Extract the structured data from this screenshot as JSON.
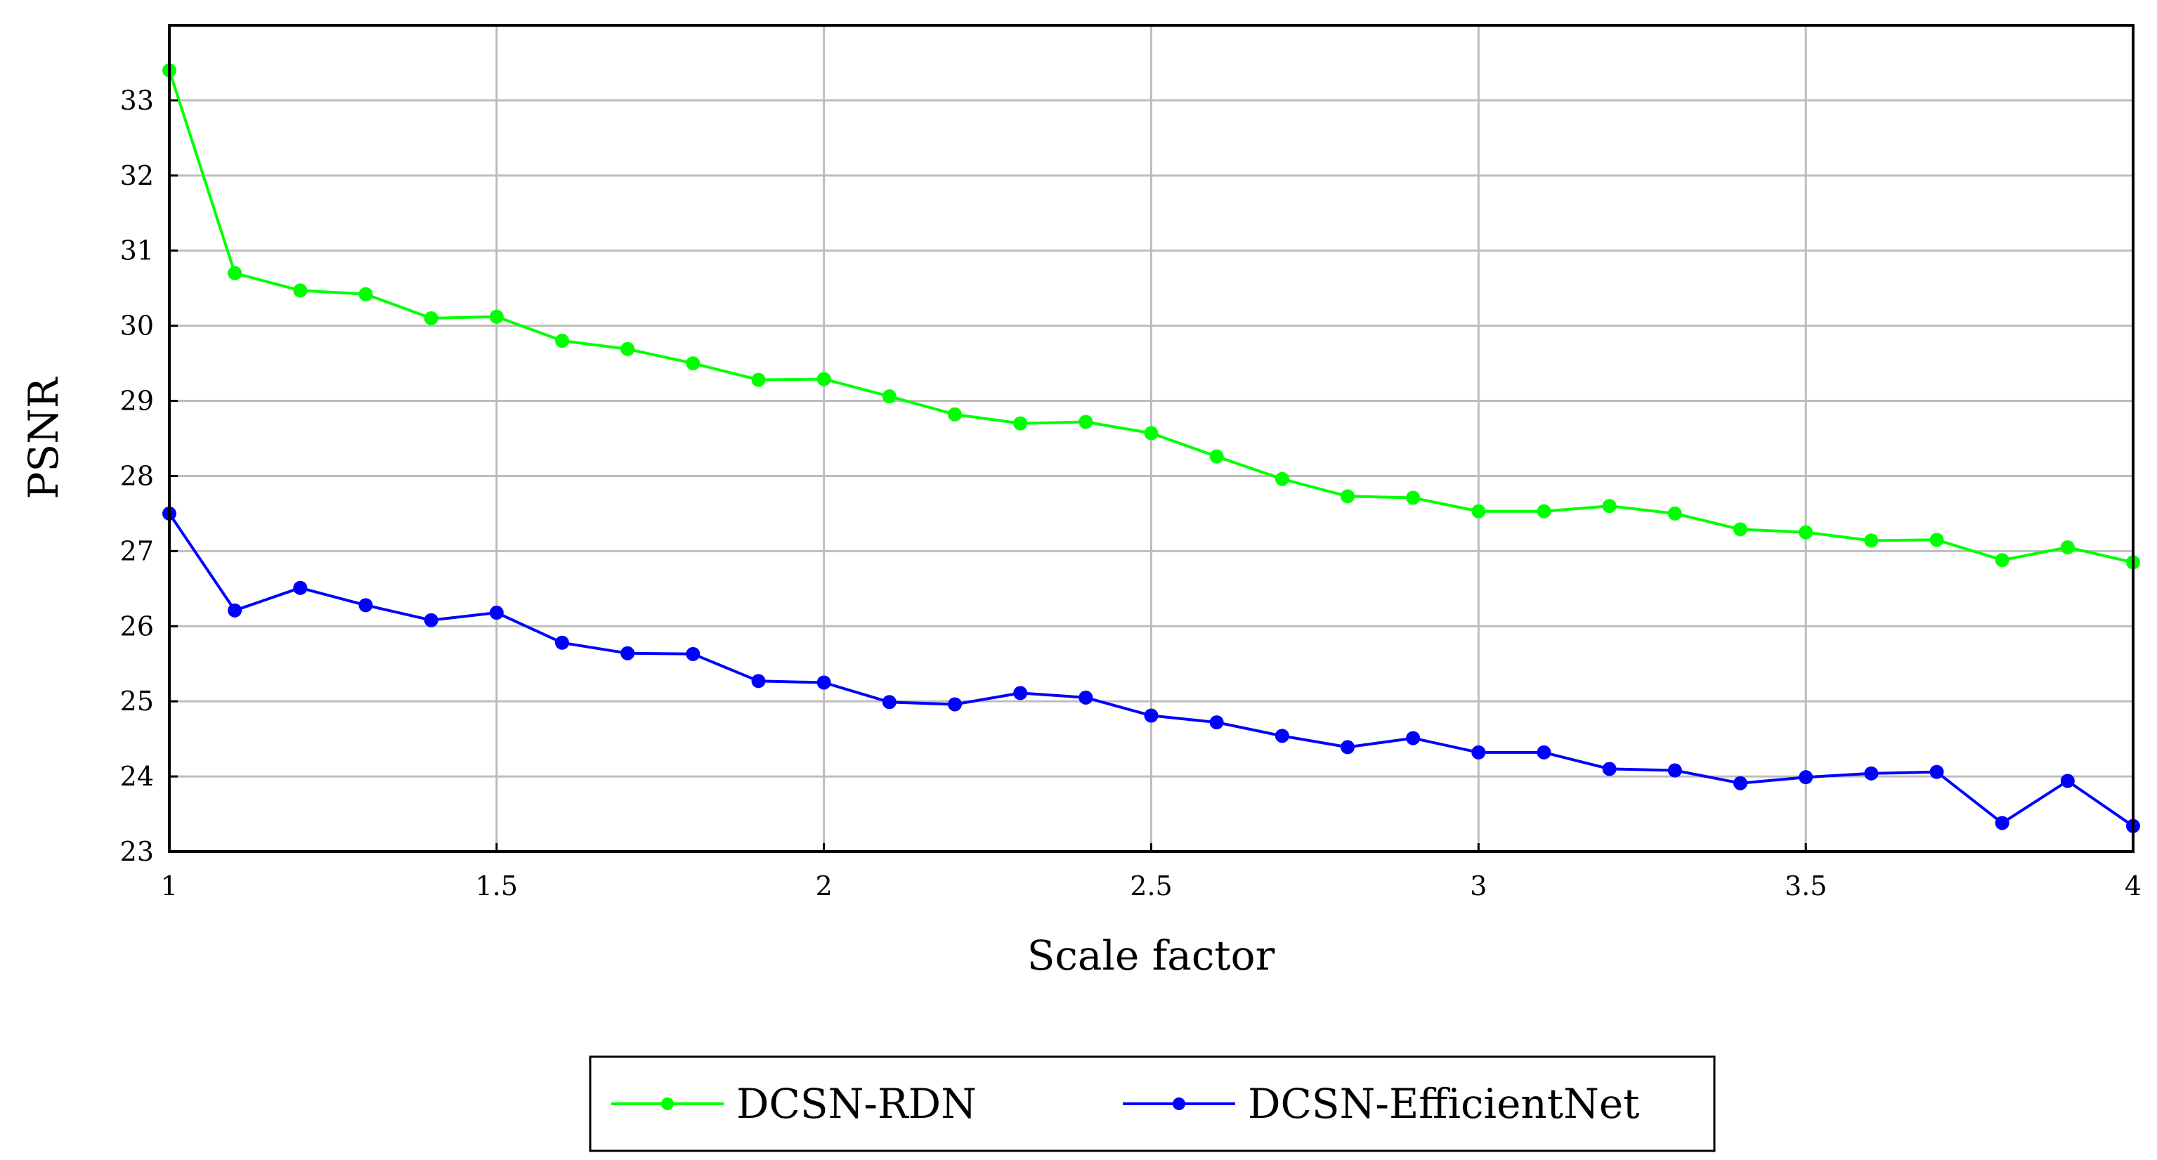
{
  "chart_data": {
    "type": "line",
    "title": "",
    "xlabel": "Scale factor",
    "ylabel": "PSNR",
    "xlim": [
      1,
      4
    ],
    "ylim": [
      23,
      34
    ],
    "xticks": [
      1,
      1.5,
      2,
      2.5,
      3,
      3.5,
      4
    ],
    "xtick_labels": [
      "1",
      "1.5",
      "2",
      "2.5",
      "3",
      "3.5",
      "4"
    ],
    "yticks": [
      23,
      24,
      25,
      26,
      27,
      28,
      29,
      30,
      31,
      32,
      33
    ],
    "ytick_labels": [
      "23",
      "24",
      "25",
      "26",
      "27",
      "28",
      "29",
      "30",
      "31",
      "32",
      "33"
    ],
    "grid": true,
    "legend_position": "bottom-center",
    "x": [
      1.0,
      1.1,
      1.2,
      1.3,
      1.4,
      1.5,
      1.6,
      1.7,
      1.8,
      1.9,
      2.0,
      2.1,
      2.2,
      2.3,
      2.4,
      2.5,
      2.6,
      2.7,
      2.8,
      2.9,
      3.0,
      3.1,
      3.2,
      3.3,
      3.4,
      3.5,
      3.6,
      3.7,
      3.8,
      3.9,
      4.0
    ],
    "series": [
      {
        "name": "DCSN-RDN",
        "color": "#00ff00",
        "values": [
          33.4,
          30.7,
          30.47,
          30.42,
          30.1,
          30.12,
          29.8,
          29.69,
          29.5,
          29.28,
          29.29,
          29.06,
          28.82,
          28.7,
          28.72,
          28.57,
          28.26,
          27.96,
          27.73,
          27.71,
          27.53,
          27.53,
          27.6,
          27.5,
          27.29,
          27.25,
          27.14,
          27.15,
          26.88,
          27.05,
          26.85
        ]
      },
      {
        "name": "DCSN-EfficientNet",
        "color": "#0000ff",
        "values": [
          27.5,
          26.21,
          26.51,
          26.28,
          26.08,
          26.18,
          25.78,
          25.64,
          25.63,
          25.27,
          25.25,
          24.99,
          24.96,
          25.11,
          25.05,
          24.81,
          24.72,
          24.54,
          24.39,
          24.51,
          24.32,
          24.32,
          24.1,
          24.08,
          23.91,
          23.99,
          24.04,
          24.06,
          23.38,
          23.94,
          23.34
        ]
      }
    ]
  }
}
